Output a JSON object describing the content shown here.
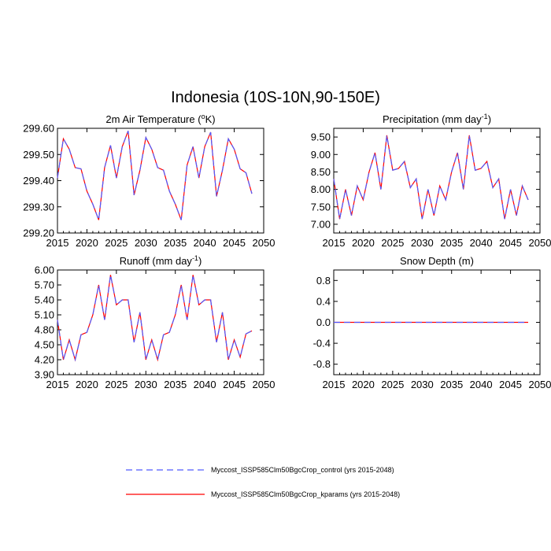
{
  "title": "Indonesia (10S-10N,90-150E)",
  "colors": {
    "control": "#4f5bff",
    "kparams": "#ff0000"
  },
  "legend": {
    "control_label": "Myccost_ISSP585Clm50BgcCrop_control (yrs 2015-2048)",
    "kparams_label": "Myccost_ISSP585Clm50BgcCrop_kparams (yrs 2015-2048)"
  },
  "chart_data": [
    {
      "type": "line",
      "title_main": "2m Air Temperature (",
      "title_sup": "o",
      "title_tail": "K)",
      "x": [
        2015,
        2016,
        2017,
        2018,
        2019,
        2020,
        2021,
        2022,
        2023,
        2024,
        2025,
        2026,
        2027,
        2028,
        2029,
        2030,
        2031,
        2032,
        2033,
        2034,
        2035,
        2036,
        2037,
        2038,
        2039,
        2040,
        2041,
        2042,
        2043,
        2044,
        2045,
        2046,
        2047,
        2048
      ],
      "xlim": [
        2015,
        2050
      ],
      "xticks": [
        2015,
        2020,
        2025,
        2030,
        2035,
        2040,
        2045,
        2050
      ],
      "xtick_labels": [
        "2015",
        "2020",
        "2025",
        "2030",
        "2035",
        "2040",
        "2045",
        "2050"
      ],
      "ylim": [
        299.2,
        299.6
      ],
      "yticks": [
        299.2,
        299.3,
        299.4,
        299.5,
        299.6
      ],
      "ytick_labels": [
        "299.20",
        "299.30",
        "299.40",
        "299.50",
        "299.60"
      ],
      "series": [
        {
          "name": "Myccost_ISSP585Clm50BgcCrop_control (yrs 2015-2048)",
          "values": [
            299.41,
            299.56,
            299.52,
            299.45,
            299.445,
            299.36,
            299.31,
            299.25,
            299.45,
            299.535,
            299.41,
            299.53,
            299.59,
            299.345,
            299.44,
            299.565,
            299.52,
            299.45,
            299.44,
            299.36,
            299.31,
            299.25,
            299.46,
            299.53,
            299.41,
            299.53,
            299.585,
            299.34,
            299.44,
            299.56,
            299.52,
            299.445,
            299.43,
            299.35
          ]
        },
        {
          "name": "Myccost_ISSP585Clm50BgcCrop_kparams (yrs 2015-2048)",
          "values": [
            299.41,
            299.56,
            299.52,
            299.45,
            299.445,
            299.36,
            299.31,
            299.25,
            299.45,
            299.535,
            299.41,
            299.53,
            299.59,
            299.345,
            299.44,
            299.565,
            299.52,
            299.45,
            299.44,
            299.36,
            299.31,
            299.25,
            299.46,
            299.53,
            299.41,
            299.53,
            299.585,
            299.34,
            299.44,
            299.56,
            299.52,
            299.445,
            299.43,
            299.35
          ]
        }
      ]
    },
    {
      "type": "line",
      "title_main": "Precipitation (mm day",
      "title_sup": "-1",
      "title_tail": ")",
      "x": [
        2015,
        2016,
        2017,
        2018,
        2019,
        2020,
        2021,
        2022,
        2023,
        2024,
        2025,
        2026,
        2027,
        2028,
        2029,
        2030,
        2031,
        2032,
        2033,
        2034,
        2035,
        2036,
        2037,
        2038,
        2039,
        2040,
        2041,
        2042,
        2043,
        2044,
        2045,
        2046,
        2047,
        2048
      ],
      "xlim": [
        2015,
        2050
      ],
      "xticks": [
        2015,
        2020,
        2025,
        2030,
        2035,
        2040,
        2045,
        2050
      ],
      "xtick_labels": [
        "2015",
        "2020",
        "2025",
        "2030",
        "2035",
        "2040",
        "2045",
        "2050"
      ],
      "ylim": [
        6.75,
        9.75
      ],
      "yticks": [
        7.0,
        7.5,
        8.0,
        8.5,
        9.0,
        9.5
      ],
      "ytick_labels": [
        "7.00",
        "7.50",
        "8.00",
        "8.50",
        "9.00",
        "9.50"
      ],
      "series": [
        {
          "name": "Myccost_ISSP585Clm50BgcCrop_control (yrs 2015-2048)",
          "values": [
            8.3,
            7.15,
            8.0,
            7.25,
            8.1,
            7.7,
            8.5,
            9.05,
            8.0,
            9.55,
            8.55,
            8.6,
            8.8,
            8.05,
            8.3,
            7.15,
            8.0,
            7.25,
            8.1,
            7.7,
            8.5,
            9.05,
            8.0,
            9.55,
            8.55,
            8.6,
            8.8,
            8.05,
            8.3,
            7.15,
            8.0,
            7.25,
            8.1,
            7.7
          ]
        },
        {
          "name": "Myccost_ISSP585Clm50BgcCrop_kparams (yrs 2015-2048)",
          "values": [
            8.3,
            7.15,
            8.0,
            7.25,
            8.1,
            7.7,
            8.5,
            9.05,
            8.0,
            9.55,
            8.55,
            8.6,
            8.8,
            8.05,
            8.3,
            7.15,
            8.0,
            7.25,
            8.1,
            7.7,
            8.5,
            9.05,
            8.0,
            9.55,
            8.55,
            8.6,
            8.8,
            8.05,
            8.3,
            7.15,
            8.0,
            7.25,
            8.1,
            7.7
          ]
        }
      ]
    },
    {
      "type": "line",
      "title_main": "Runoff (mm day",
      "title_sup": "-1",
      "title_tail": ")",
      "x": [
        2015,
        2016,
        2017,
        2018,
        2019,
        2020,
        2021,
        2022,
        2023,
        2024,
        2025,
        2026,
        2027,
        2028,
        2029,
        2030,
        2031,
        2032,
        2033,
        2034,
        2035,
        2036,
        2037,
        2038,
        2039,
        2040,
        2041,
        2042,
        2043,
        2044,
        2045,
        2046,
        2047,
        2048
      ],
      "xlim": [
        2015,
        2050
      ],
      "xticks": [
        2015,
        2020,
        2025,
        2030,
        2035,
        2040,
        2045,
        2050
      ],
      "xtick_labels": [
        "2015",
        "2020",
        "2025",
        "2030",
        "2035",
        "2040",
        "2045",
        "2050"
      ],
      "ylim": [
        3.9,
        6.0
      ],
      "yticks": [
        3.9,
        4.2,
        4.5,
        4.8,
        5.1,
        5.4,
        5.7,
        6.0
      ],
      "ytick_labels": [
        "3.90",
        "4.20",
        "4.50",
        "4.80",
        "5.10",
        "5.40",
        "5.70",
        "6.00"
      ],
      "series": [
        {
          "name": "Myccost_ISSP585Clm50BgcCrop_control (yrs 2015-2048)",
          "values": [
            5.0,
            4.2,
            4.6,
            4.2,
            4.7,
            4.75,
            5.1,
            5.7,
            5.0,
            5.9,
            5.3,
            5.4,
            5.4,
            4.55,
            5.15,
            4.2,
            4.6,
            4.2,
            4.7,
            4.75,
            5.1,
            5.7,
            5.0,
            5.9,
            5.3,
            5.4,
            5.4,
            4.55,
            5.15,
            4.2,
            4.6,
            4.25,
            4.72,
            4.78
          ]
        },
        {
          "name": "Myccost_ISSP585Clm50BgcCrop_kparams (yrs 2015-2048)",
          "values": [
            5.0,
            4.2,
            4.6,
            4.2,
            4.7,
            4.75,
            5.1,
            5.7,
            5.0,
            5.9,
            5.3,
            5.4,
            5.4,
            4.55,
            5.15,
            4.2,
            4.6,
            4.2,
            4.7,
            4.75,
            5.1,
            5.7,
            5.0,
            5.9,
            5.3,
            5.4,
            5.4,
            4.55,
            5.15,
            4.2,
            4.6,
            4.25,
            4.72,
            4.78
          ]
        }
      ]
    },
    {
      "type": "line",
      "title_main": "Snow Depth (m)",
      "title_sup": "",
      "title_tail": "",
      "x": [
        2015,
        2016,
        2017,
        2018,
        2019,
        2020,
        2021,
        2022,
        2023,
        2024,
        2025,
        2026,
        2027,
        2028,
        2029,
        2030,
        2031,
        2032,
        2033,
        2034,
        2035,
        2036,
        2037,
        2038,
        2039,
        2040,
        2041,
        2042,
        2043,
        2044,
        2045,
        2046,
        2047,
        2048
      ],
      "xlim": [
        2015,
        2050
      ],
      "xticks": [
        2015,
        2020,
        2025,
        2030,
        2035,
        2040,
        2045,
        2050
      ],
      "xtick_labels": [
        "2015",
        "2020",
        "2025",
        "2030",
        "2035",
        "2040",
        "2045",
        "2050"
      ],
      "ylim": [
        -1.0,
        1.0
      ],
      "yticks": [
        -0.8,
        -0.4,
        0.0,
        0.4,
        0.8
      ],
      "ytick_labels": [
        "-0.8",
        "-0.4",
        "0.0",
        "0.4",
        "0.8"
      ],
      "series": [
        {
          "name": "Myccost_ISSP585Clm50BgcCrop_control (yrs 2015-2048)",
          "values": [
            0,
            0,
            0,
            0,
            0,
            0,
            0,
            0,
            0,
            0,
            0,
            0,
            0,
            0,
            0,
            0,
            0,
            0,
            0,
            0,
            0,
            0,
            0,
            0,
            0,
            0,
            0,
            0,
            0,
            0,
            0,
            0,
            0,
            0
          ]
        },
        {
          "name": "Myccost_ISSP585Clm50BgcCrop_kparams (yrs 2015-2048)",
          "values": [
            0,
            0,
            0,
            0,
            0,
            0,
            0,
            0,
            0,
            0,
            0,
            0,
            0,
            0,
            0,
            0,
            0,
            0,
            0,
            0,
            0,
            0,
            0,
            0,
            0,
            0,
            0,
            0,
            0,
            0,
            0,
            0,
            0,
            0
          ]
        }
      ]
    }
  ]
}
